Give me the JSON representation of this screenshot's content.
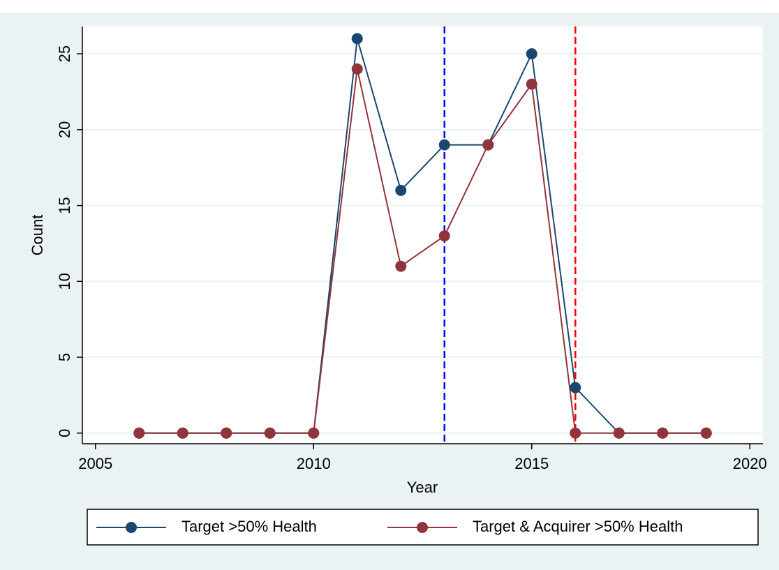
{
  "chart_data": {
    "type": "line",
    "x": [
      2006,
      2007,
      2008,
      2009,
      2010,
      2011,
      2012,
      2013,
      2014,
      2015,
      2016,
      2017,
      2018,
      2019
    ],
    "series": [
      {
        "name": "Target >50% Health",
        "color": "#1a476f",
        "values": [
          0,
          0,
          0,
          0,
          0,
          26,
          16,
          19,
          19,
          25,
          3,
          0,
          0,
          0
        ]
      },
      {
        "name": "Target & Acquirer >50% Health",
        "color": "#90353b",
        "values": [
          0,
          0,
          0,
          0,
          0,
          24,
          11,
          13,
          19,
          23,
          0,
          0,
          0,
          0
        ]
      }
    ],
    "vlines": [
      {
        "x": 2013,
        "color": "#0000ff"
      },
      {
        "x": 2016,
        "color": "#ff0000"
      }
    ],
    "xlabel": "Year",
    "ylabel": "Count",
    "xlim": [
      2004.7,
      2020.3
    ],
    "ylim": [
      -0.7,
      26.8
    ],
    "xticks": [
      2005,
      2010,
      2015,
      2020
    ],
    "yticks": [
      0,
      5,
      10,
      15,
      20,
      25
    ],
    "grid": true,
    "legend": "bottom"
  }
}
